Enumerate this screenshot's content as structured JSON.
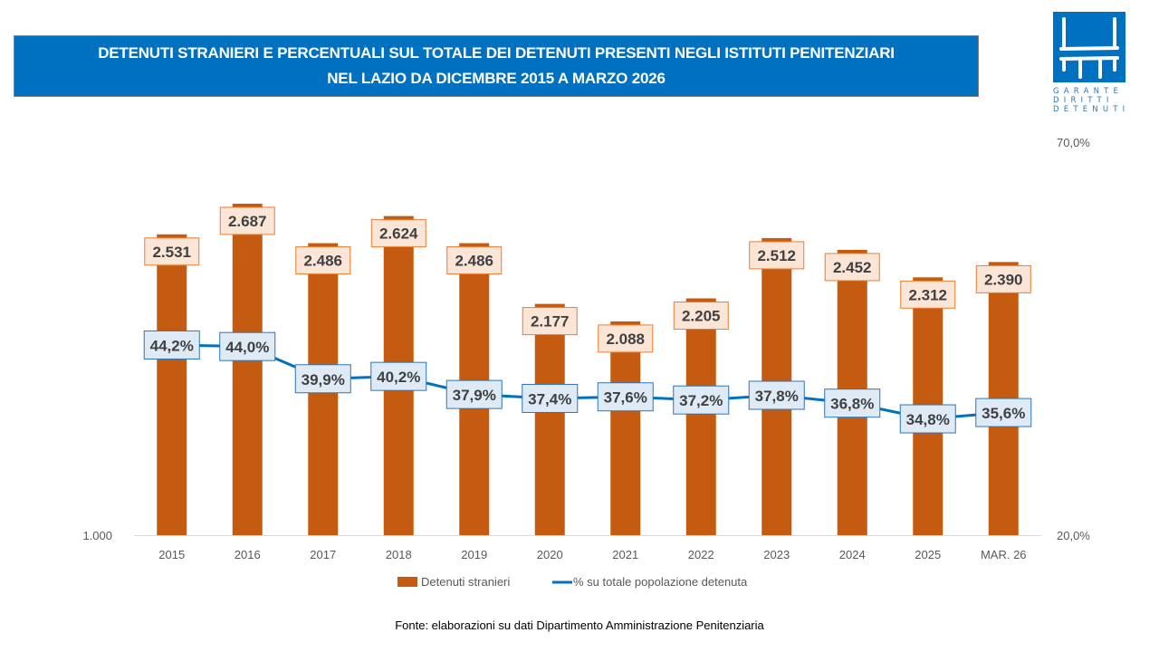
{
  "header": {
    "title_line1": "DETENUTI STRANIERI E PERCENTUALI SUL TOTALE DEI DETENUTI PRESENTI NEGLI ISTITUTI PENITENZIARI",
    "title_line2": "NEL LAZIO DA DICEMBRE 2015 A MARZO 2026"
  },
  "logo": {
    "icon": "garante-logo-icon",
    "lines": [
      "GARANTE",
      "DIRITTI",
      "DETENUTI"
    ],
    "color": "#0070c0"
  },
  "source": "Fonte: elaborazioni su dati Dipartimento Amministrazione Penitenziaria",
  "chart_data": {
    "type": "bar",
    "title": "DETENUTI STRANIERI E PERCENTUALI SUL TOTALE DEI DETENUTI PRESENTI NEGLI ISTITUTI PENITENZIARI NEL LAZIO DA DICEMBRE 2015 A MARZO 2026",
    "categories": [
      "2015",
      "2016",
      "2017",
      "2018",
      "2019",
      "2020",
      "2021",
      "2022",
      "2023",
      "2024",
      "2025",
      "MAR. 26"
    ],
    "series": [
      {
        "name": "Detenuti stranieri",
        "type": "bar",
        "axis": "left",
        "color": "#c55a11",
        "values": [
          2531,
          2687,
          2486,
          2624,
          2486,
          2177,
          2088,
          2205,
          2512,
          2452,
          2312,
          2390
        ],
        "labels": [
          "2.531",
          "2.687",
          "2.486",
          "2.624",
          "2.486",
          "2.177",
          "2.088",
          "2.205",
          "2.512",
          "2.452",
          "2.312",
          "2.390"
        ]
      },
      {
        "name": "% su totale popolazione detenuta",
        "type": "line",
        "axis": "right",
        "color": "#0070c0",
        "values": [
          44.2,
          44.0,
          39.9,
          40.2,
          37.9,
          37.4,
          37.6,
          37.2,
          37.8,
          36.8,
          34.8,
          35.6
        ],
        "labels": [
          "44,2%",
          "44,0%",
          "39,9%",
          "40,2%",
          "37,9%",
          "37,4%",
          "37,6%",
          "37,2%",
          "37,8%",
          "36,8%",
          "34,8%",
          "35,6%"
        ]
      }
    ],
    "left_axis": {
      "range": [
        1000,
        3000
      ],
      "tick_labels_shown": [
        "1.000"
      ]
    },
    "right_axis": {
      "range": [
        20,
        70
      ],
      "tick_labels_shown": [
        "20,0%",
        "70,0%"
      ]
    },
    "xlabel": "",
    "ylabel": "",
    "grid": false,
    "legend": {
      "position": "bottom",
      "entries": [
        "Detenuti stranieri",
        "% su totale popolazione detenuta"
      ]
    }
  }
}
